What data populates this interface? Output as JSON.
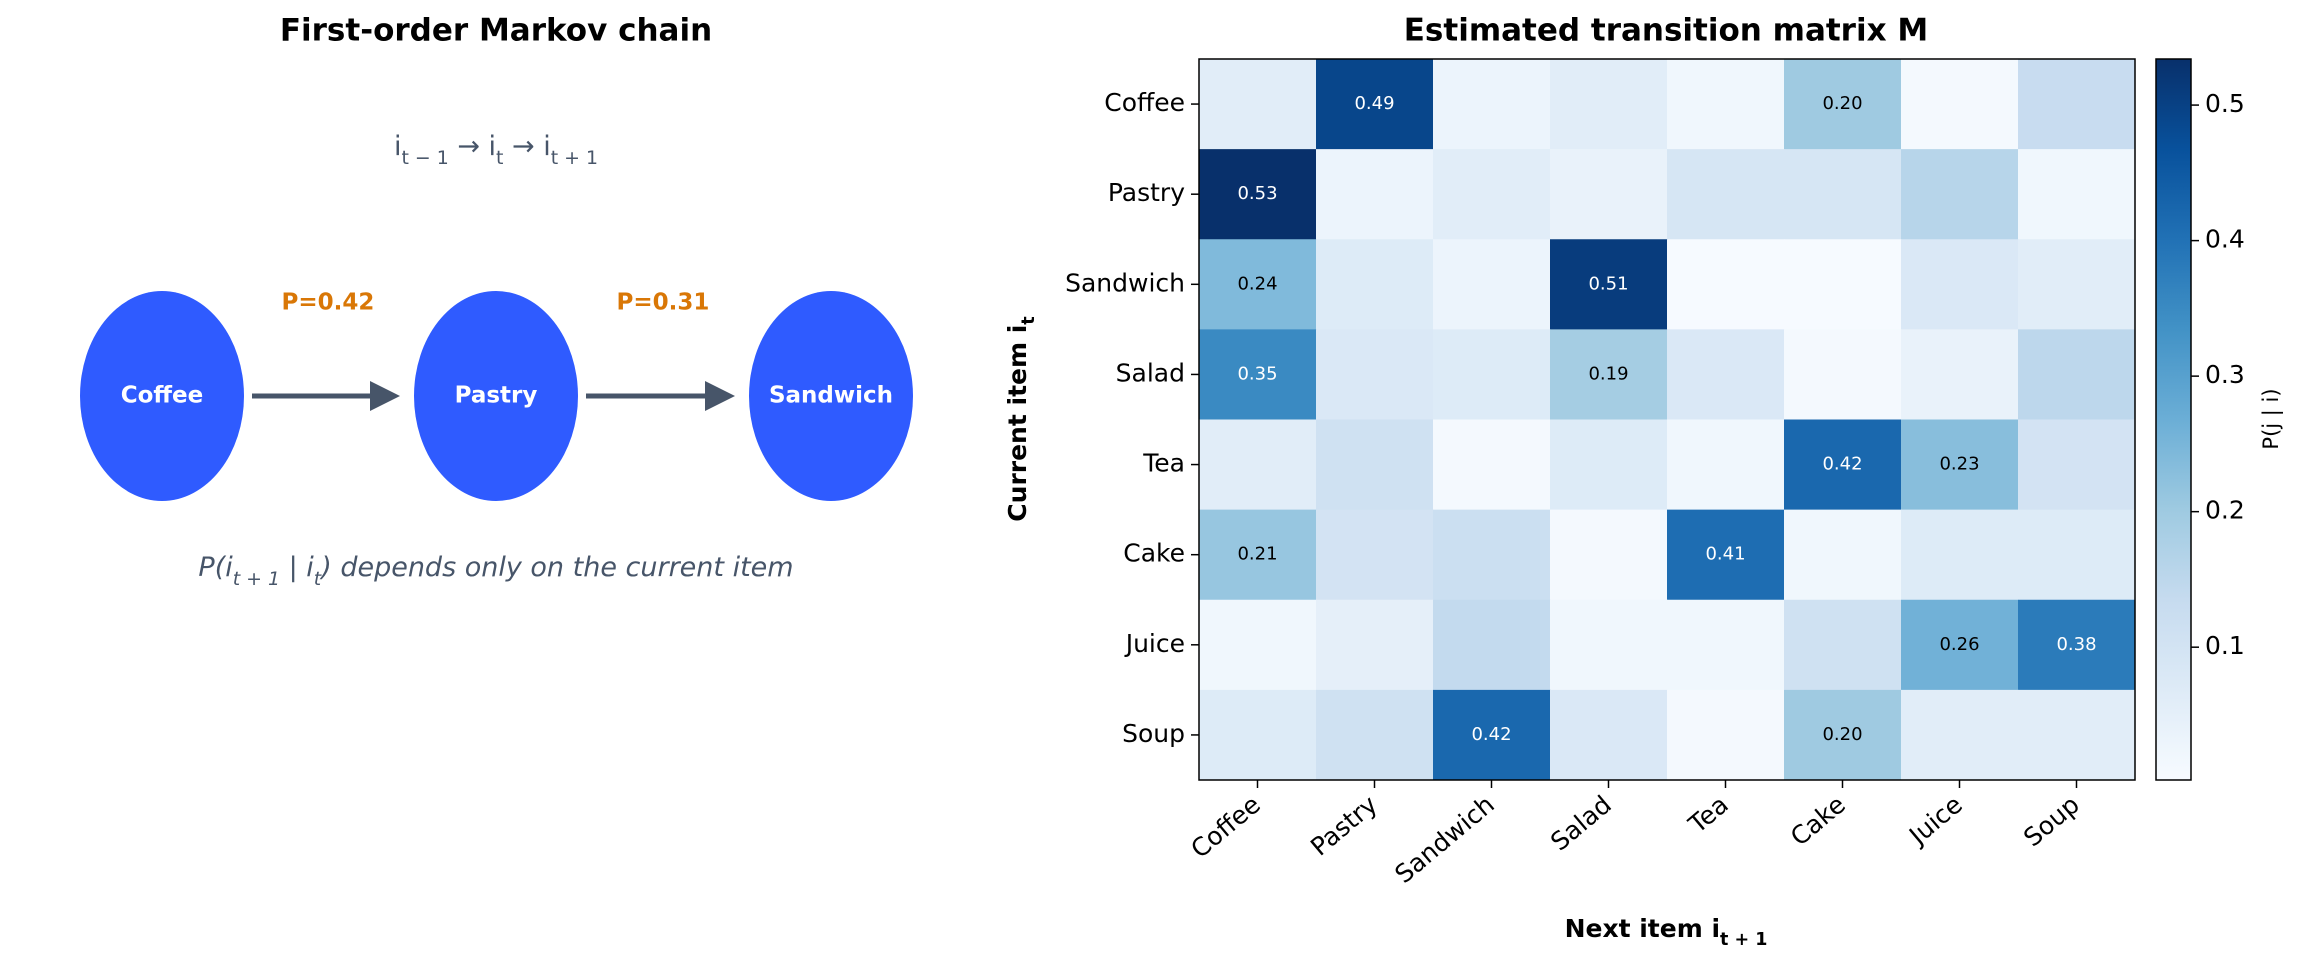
{
  "diagram": {
    "title": "First-order Markov chain",
    "sequence": {
      "parts": [
        {
          "text": "i"
        },
        {
          "sub": "t − 1"
        },
        {
          "text": "  →  i"
        },
        {
          "sub": "t"
        },
        {
          "text": "  →  i"
        },
        {
          "sub": "t + 1"
        }
      ]
    },
    "nodes": [
      {
        "label": "Coffee"
      },
      {
        "label": "Pastry"
      },
      {
        "label": "Sandwich"
      }
    ],
    "edges": [
      {
        "label": "P=0.42"
      },
      {
        "label": "P=0.31"
      }
    ],
    "caption": {
      "parts": [
        {
          "text": "P(i"
        },
        {
          "sub": "t + 1"
        },
        {
          "text": " | i"
        },
        {
          "sub": "t"
        },
        {
          "text": ") depends only on the current item"
        }
      ]
    }
  },
  "chart_data": {
    "type": "heatmap",
    "title": "Estimated transition matrix M",
    "xlabel": {
      "parts": [
        {
          "text": "Next item  i"
        },
        {
          "sub": "t + 1"
        }
      ]
    },
    "ylabel": {
      "parts": [
        {
          "text": "Current item  i"
        },
        {
          "sub": "t"
        }
      ]
    },
    "x_categories": [
      "Coffee",
      "Pastry",
      "Sandwich",
      "Salad",
      "Tea",
      "Cake",
      "Juice",
      "Soup"
    ],
    "y_categories": [
      "Coffee",
      "Pastry",
      "Sandwich",
      "Salad",
      "Tea",
      "Cake",
      "Juice",
      "Soup"
    ],
    "values": [
      [
        0.06,
        0.49,
        0.03,
        0.06,
        0.02,
        0.2,
        0.01,
        0.13
      ],
      [
        0.534,
        0.03,
        0.06,
        0.04,
        0.09,
        0.09,
        0.16,
        0.02
      ],
      [
        0.24,
        0.07,
        0.03,
        0.51,
        0.005,
        0.005,
        0.08,
        0.06
      ],
      [
        0.35,
        0.08,
        0.07,
        0.19,
        0.08,
        0.01,
        0.04,
        0.15
      ],
      [
        0.06,
        0.11,
        0.01,
        0.07,
        0.02,
        0.42,
        0.23,
        0.1
      ],
      [
        0.21,
        0.1,
        0.12,
        0.01,
        0.41,
        0.02,
        0.07,
        0.07
      ],
      [
        0.02,
        0.05,
        0.14,
        0.02,
        0.02,
        0.11,
        0.26,
        0.38
      ],
      [
        0.07,
        0.11,
        0.42,
        0.08,
        0.01,
        0.2,
        0.06,
        0.06
      ]
    ],
    "value_labels": [
      [
        null,
        "0.49",
        null,
        null,
        null,
        "0.20",
        null,
        null
      ],
      [
        "0.53",
        null,
        null,
        null,
        null,
        null,
        null,
        null
      ],
      [
        "0.24",
        null,
        null,
        "0.51",
        null,
        null,
        null,
        null
      ],
      [
        "0.35",
        null,
        null,
        "0.19",
        null,
        null,
        null,
        null
      ],
      [
        null,
        null,
        null,
        null,
        null,
        "0.42",
        "0.23",
        null
      ],
      [
        "0.21",
        null,
        null,
        null,
        "0.41",
        null,
        null,
        null
      ],
      [
        null,
        null,
        null,
        null,
        null,
        null,
        "0.26",
        "0.38"
      ],
      [
        null,
        null,
        "0.42",
        null,
        null,
        "0.20",
        null,
        null
      ]
    ],
    "colormap": "Blues",
    "zlim": [
      0.002,
      0.534
    ],
    "zticks": [
      0.1,
      0.2,
      0.3,
      0.4,
      0.5
    ],
    "colorbar_label": "P(j | i)"
  }
}
